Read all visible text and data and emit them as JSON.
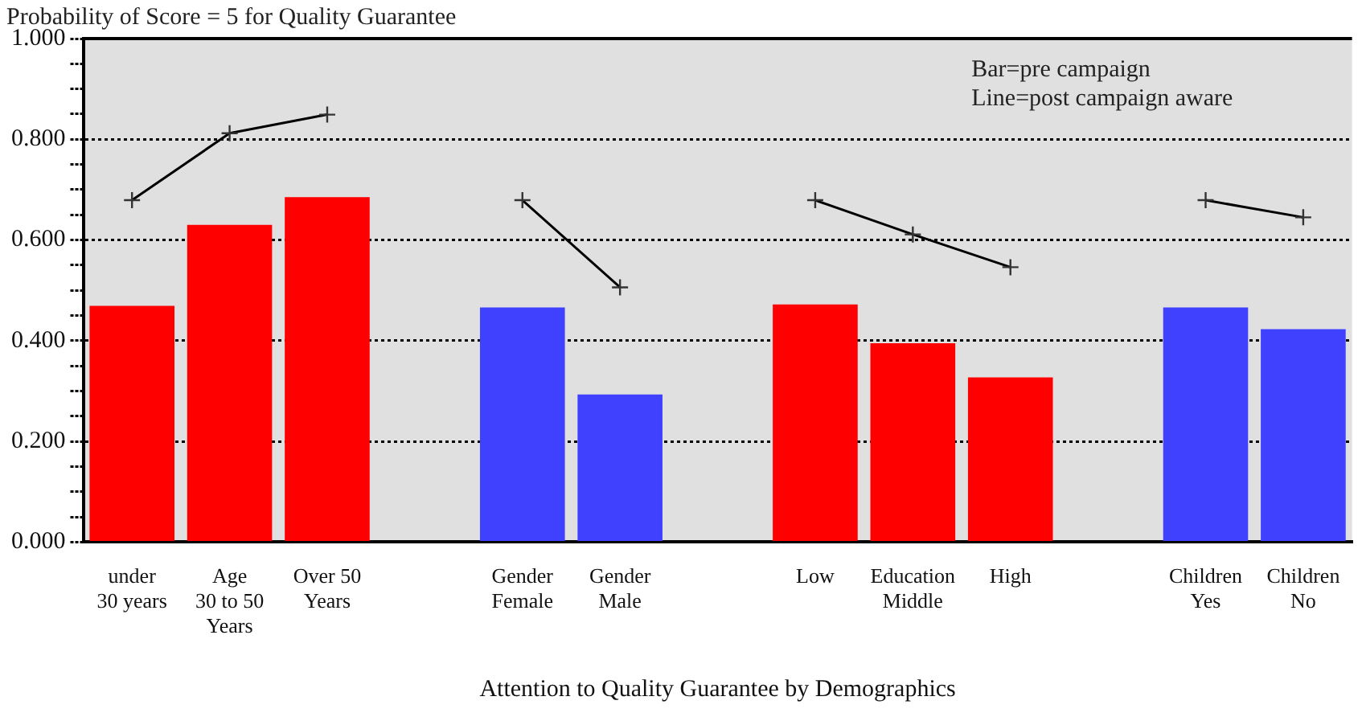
{
  "chart_data": {
    "type": "bar",
    "title": "Probability of Score = 5 for Quality Guarantee",
    "xlabel": "Attention to Quality Guarantee by Demographics",
    "categories": [
      "under\n30 years",
      "Age\n30 to 50\nYears",
      "Over 50\nYears",
      null,
      "Gender\nFemale",
      "Gender\nMale",
      null,
      "Low",
      "Education\nMiddle",
      "High",
      null,
      "Children\nYes",
      "Children\nNo"
    ],
    "series": [
      {
        "values": [
          0.469,
          0.63,
          0.685,
          null,
          0.466,
          0.293,
          null,
          0.472,
          0.395,
          0.327,
          null,
          0.466,
          0.423
        ],
        "colors": [
          "#ff0000",
          "#ff0000",
          "#ff0000",
          null,
          "#4040ff",
          "#4040ff",
          null,
          "#ff0000",
          "#ff0000",
          "#ff0000",
          null,
          "#4040ff",
          "#4040ff"
        ]
      },
      {
        "type": "line",
        "color": "#000000",
        "marker": "cross",
        "values": [
          0.679,
          0.812,
          0.849,
          null,
          0.679,
          0.506,
          null,
          0.679,
          0.611,
          0.546,
          null,
          0.679,
          0.645
        ]
      }
    ],
    "ylim": [
      0,
      1
    ],
    "yticks": [
      {
        "value": 0,
        "label": "0.000"
      },
      {
        "value": 0.05,
        "label": null
      },
      {
        "value": 0.1,
        "label": null
      },
      {
        "value": 0.15,
        "label": null
      },
      {
        "value": 0.2,
        "label": "0.200"
      },
      {
        "value": 0.25,
        "label": null
      },
      {
        "value": 0.3,
        "label": null
      },
      {
        "value": 0.35,
        "label": null
      },
      {
        "value": 0.4,
        "label": "0.400"
      },
      {
        "value": 0.45,
        "label": null
      },
      {
        "value": 0.5,
        "label": null
      },
      {
        "value": 0.55,
        "label": null
      },
      {
        "value": 0.6,
        "label": "0.600"
      },
      {
        "value": 0.65,
        "label": null
      },
      {
        "value": 0.7,
        "label": null
      },
      {
        "value": 0.75,
        "label": null
      },
      {
        "value": 0.8,
        "label": "0.800"
      },
      {
        "value": 0.85,
        "label": null
      },
      {
        "value": 0.9,
        "label": null
      },
      {
        "value": 0.95,
        "label": null
      },
      {
        "value": 1,
        "label": "1.000"
      }
    ],
    "grid": "y",
    "legend": false,
    "annotations": [
      "Bar=pre campaign",
      "Line=post campaign aware"
    ]
  }
}
